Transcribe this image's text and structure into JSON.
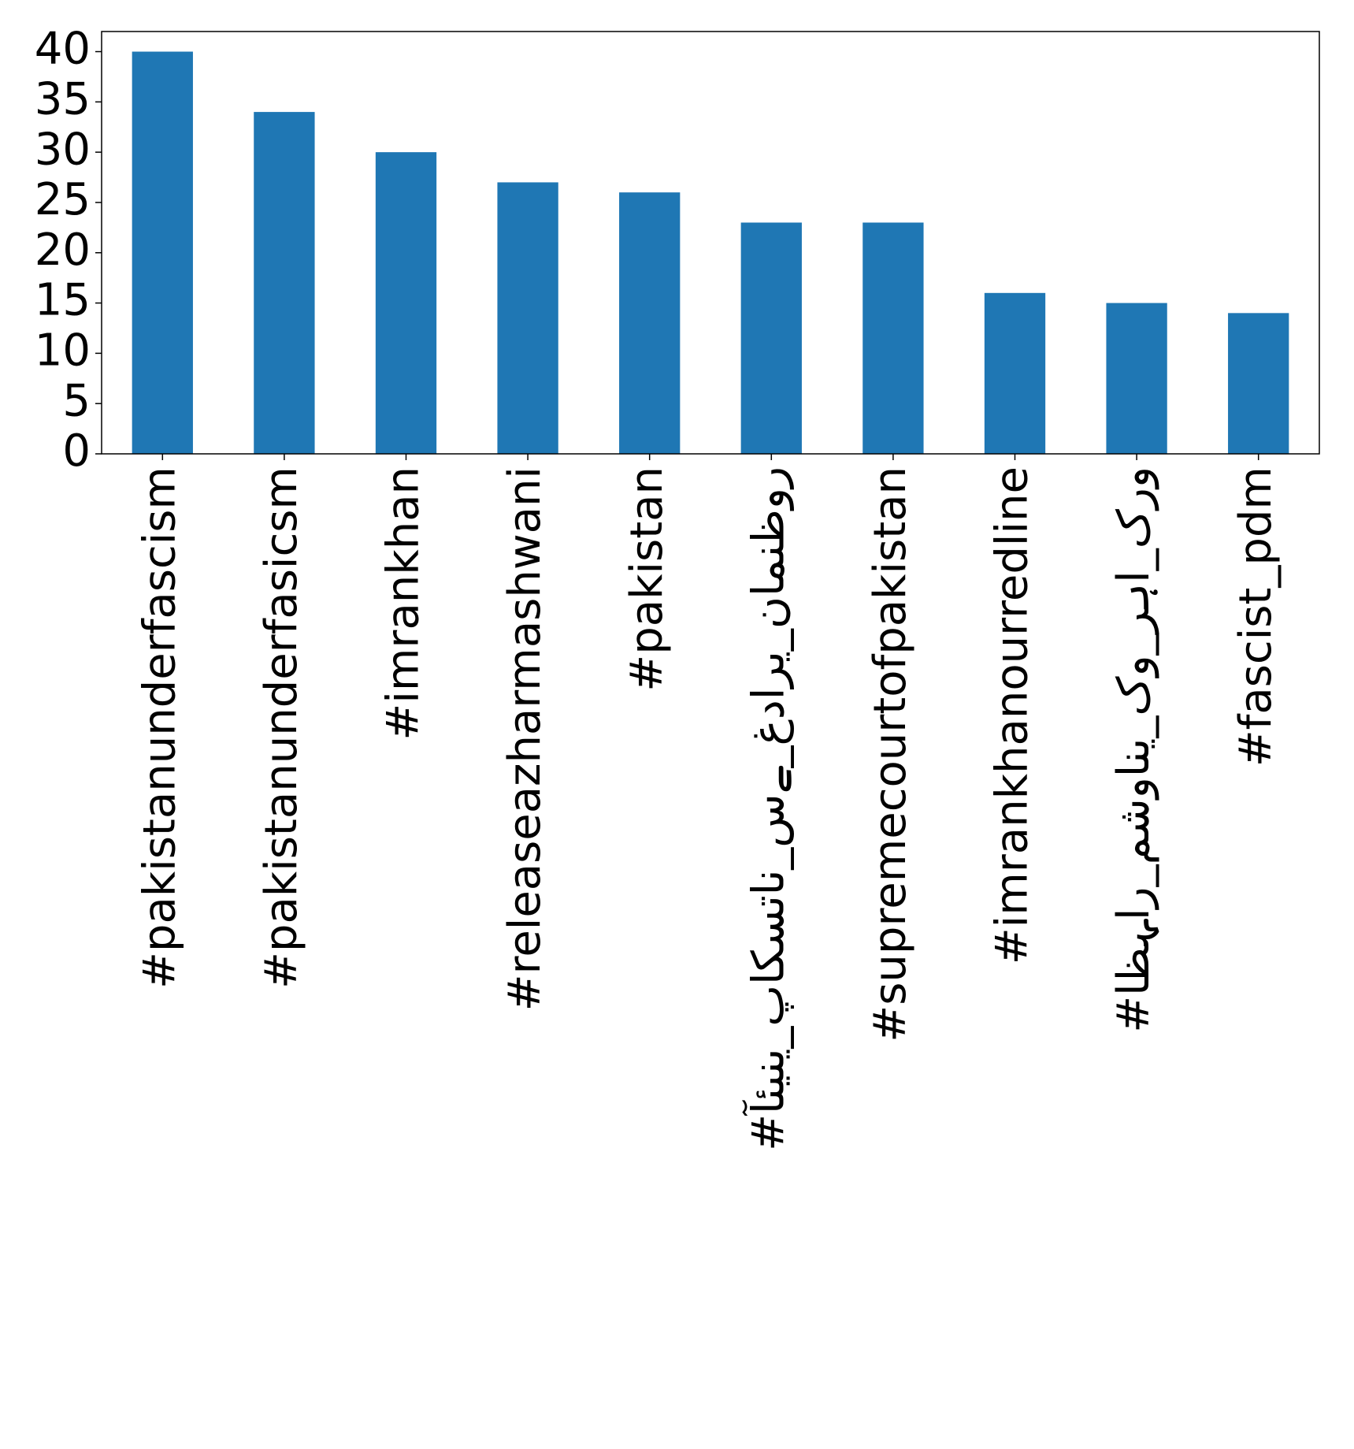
{
  "chart_data": {
    "type": "bar",
    "categories": [
      "#pakistanunderfascism",
      "#pakistanunderfasicsm",
      "#imrankhan",
      "#releaseazharmashwani",
      "#pakistan",
      "#آئینی_پاکستان_سے_غداری_نامنظور",
      "#supremecourtofpakistan",
      "#imrankhanourredline",
      "#اظہار_مشوانی_کو_رہا_کرو",
      "#fascist_pdm"
    ],
    "values": [
      40,
      34,
      30,
      27,
      26,
      23,
      23,
      16,
      15,
      14
    ],
    "color": "#1f77b4",
    "ylim": [
      0,
      42
    ],
    "yticks": [
      0,
      5,
      10,
      15,
      20,
      25,
      30,
      35,
      40
    ],
    "grid": false
  }
}
